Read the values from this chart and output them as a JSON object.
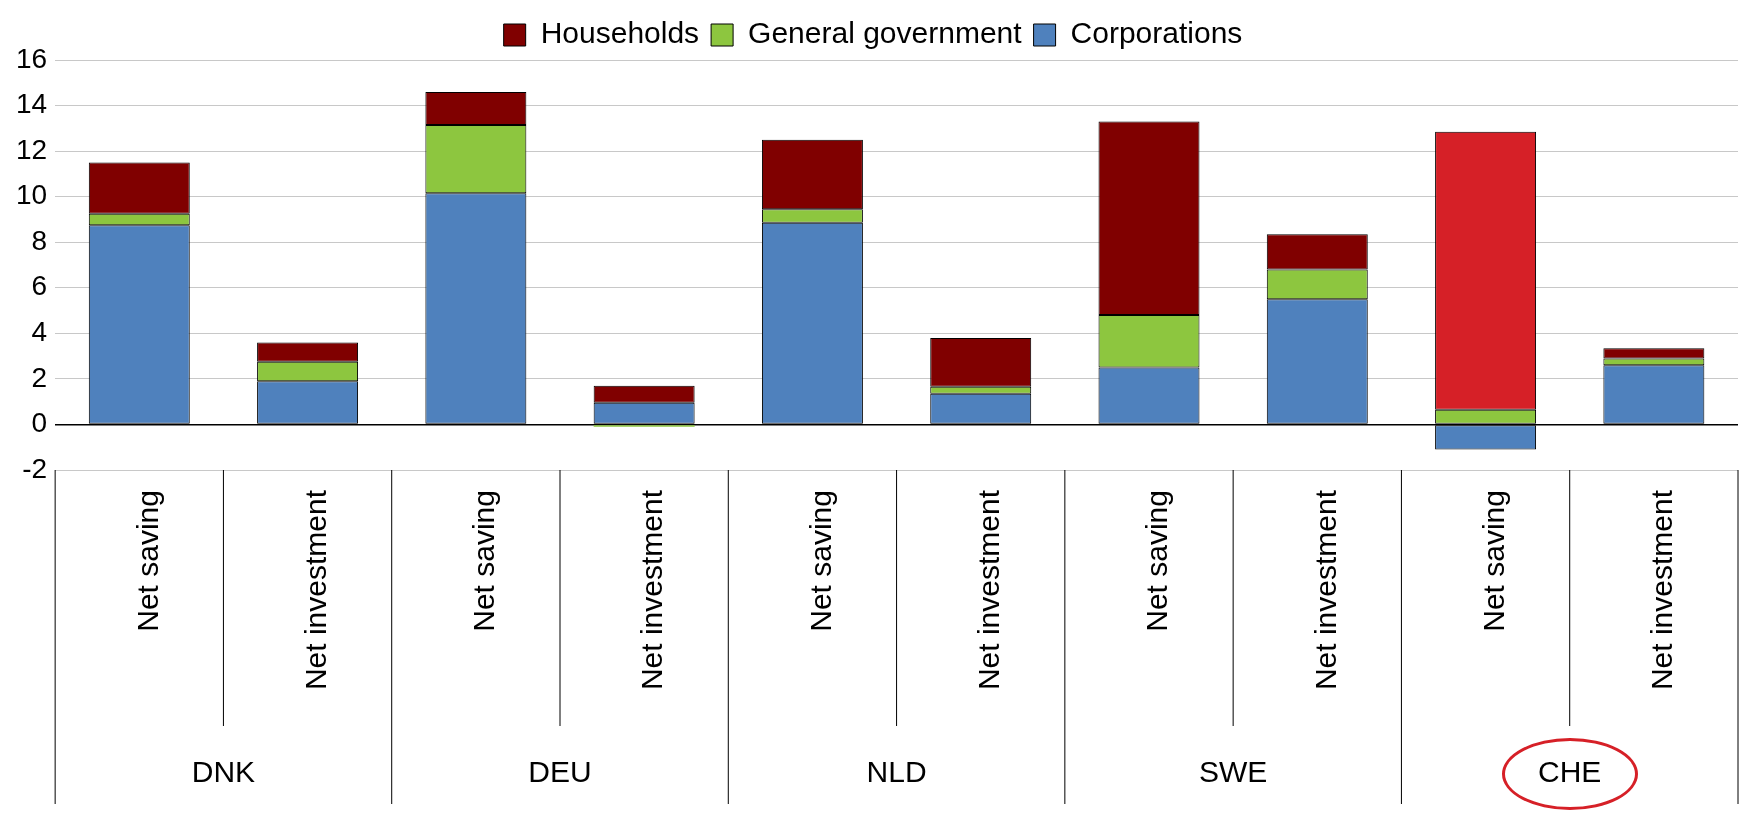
{
  "chart_data": {
    "type": "bar",
    "stacked": true,
    "categories": [
      "Net saving",
      "Net investment",
      "Net saving",
      "Net investment",
      "Net saving",
      "Net investment",
      "Net saving",
      "Net investment",
      "Net saving",
      "Net investment"
    ],
    "series": [
      {
        "name": "Corporations",
        "color": "#4f81bd",
        "values": [
          8.75,
          1.9,
          10.15,
          0.95,
          8.85,
          1.35,
          2.5,
          5.5,
          -1.1,
          2.6
        ]
      },
      {
        "name": "General government",
        "color": "#8dc63f",
        "values": [
          0.5,
          0.85,
          3.0,
          -0.1,
          0.6,
          0.3,
          2.3,
          1.3,
          0.65,
          0.3
        ]
      },
      {
        "name": "Households",
        "color": "#800000",
        "colors": [
          "#800000",
          "#800000",
          "#800000",
          "#800000",
          "#800000",
          "#800000",
          "#800000",
          "#800000",
          "#d62027",
          "#800000"
        ],
        "values": [
          2.25,
          0.85,
          1.45,
          0.75,
          3.05,
          2.15,
          8.5,
          1.55,
          12.2,
          0.45
        ]
      }
    ],
    "annotations": [
      "DNK",
      "DEU",
      "NLD",
      "SWE",
      "CHE"
    ],
    "ylim": [
      -2,
      16
    ],
    "yticks": [
      -2,
      0,
      2,
      4,
      6,
      8,
      10,
      12,
      14,
      16
    ],
    "grid": "y",
    "legend": "top"
  }
}
